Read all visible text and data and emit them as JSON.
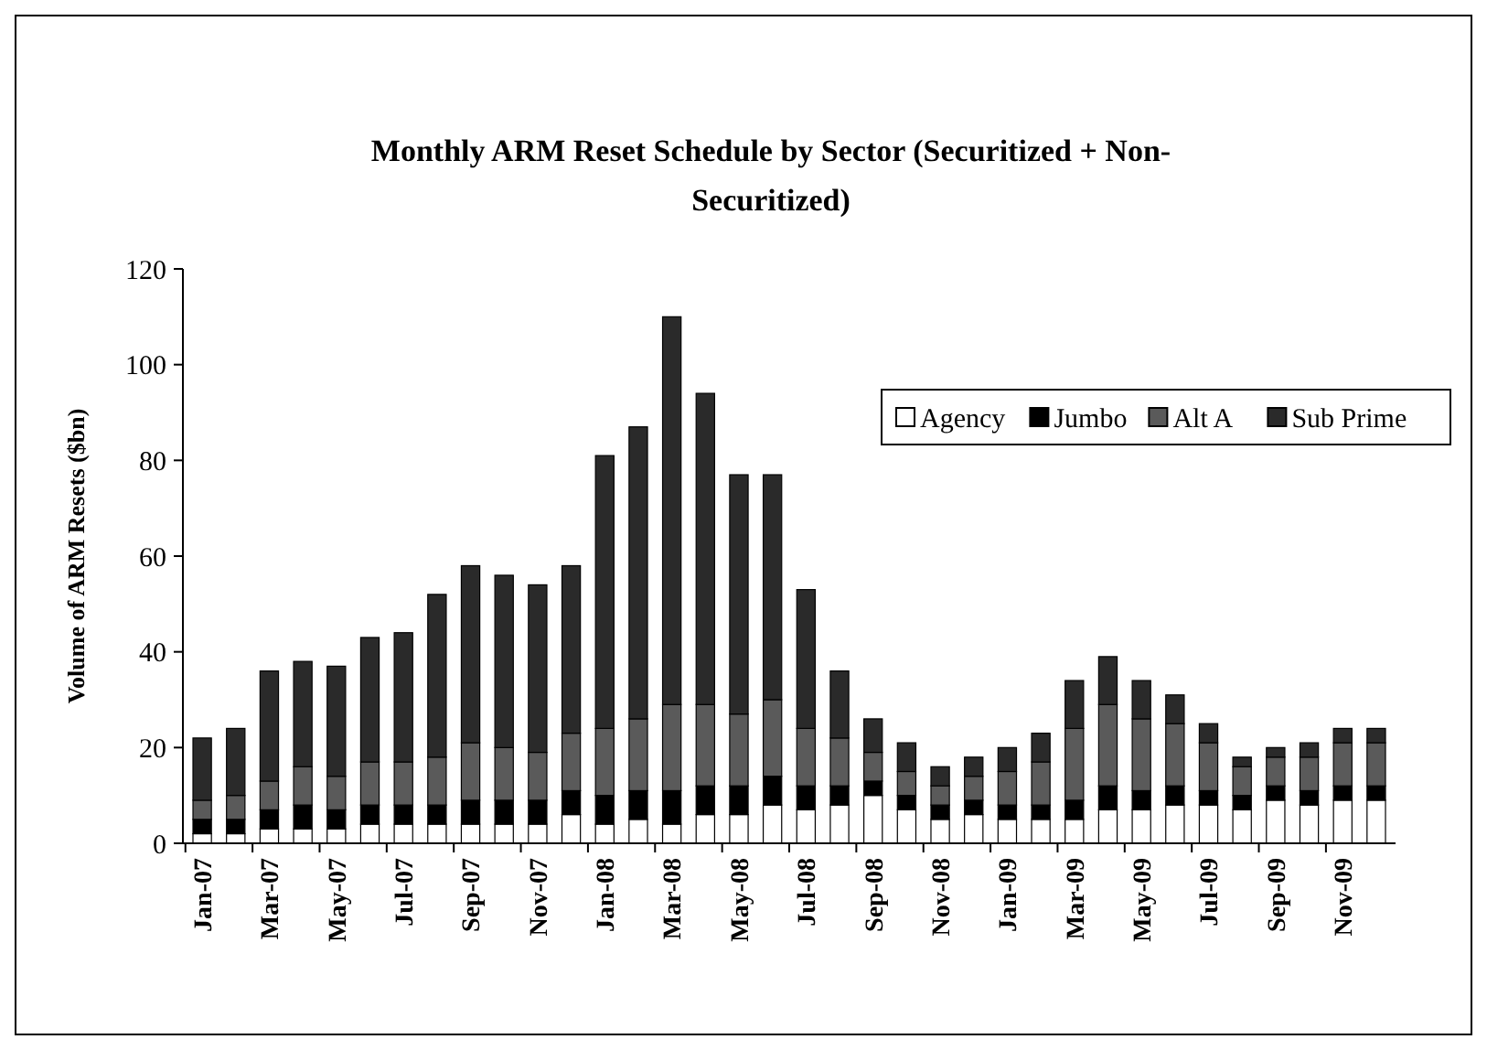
{
  "chart_data": {
    "type": "bar",
    "title": "Monthly ARM Reset Schedule by Sector (Securitized + Non-Securitized)",
    "ylabel": "Volume of ARM Resets ($bn)",
    "categories": [
      "Jan-07",
      null,
      "Mar-07",
      null,
      "May-07",
      null,
      "Jul-07",
      null,
      "Sep-07",
      null,
      "Nov-07",
      null,
      "Jan-08",
      null,
      "Mar-08",
      null,
      "May-08",
      null,
      "Jul-08",
      null,
      "Sep-08",
      null,
      "Nov-08",
      null,
      "Jan-09",
      null,
      "Mar-09",
      null,
      "May-09",
      null,
      "Jul-09",
      null,
      "Sep-09",
      null,
      "Nov-09",
      null
    ],
    "stacked": true,
    "series": [
      {
        "name": "Agency",
        "color": "#ffffff",
        "values": [
          2,
          2,
          3,
          3,
          3,
          4,
          4,
          4,
          4,
          4,
          4,
          6,
          4,
          5,
          4,
          6,
          6,
          8,
          7,
          8,
          10,
          7,
          5,
          6,
          5,
          5,
          5,
          7,
          7,
          8,
          8,
          7,
          9,
          8,
          9,
          9
        ]
      },
      {
        "name": "Jumbo",
        "color": "#000000",
        "values": [
          3,
          3,
          4,
          5,
          4,
          4,
          4,
          4,
          5,
          5,
          5,
          5,
          6,
          6,
          7,
          6,
          6,
          6,
          5,
          4,
          3,
          3,
          3,
          3,
          3,
          3,
          4,
          5,
          4,
          4,
          3,
          3,
          3,
          3,
          3,
          3
        ]
      },
      {
        "name": "Alt A",
        "color": "#5a5a5a",
        "values": [
          4,
          5,
          6,
          8,
          7,
          9,
          9,
          10,
          12,
          11,
          10,
          12,
          14,
          15,
          18,
          17,
          15,
          16,
          12,
          10,
          6,
          5,
          4,
          5,
          7,
          9,
          15,
          17,
          15,
          13,
          10,
          6,
          6,
          7,
          9,
          9
        ]
      },
      {
        "name": "Sub Prime",
        "color": "#2a2a2a",
        "values": [
          13,
          14,
          23,
          22,
          23,
          26,
          27,
          34,
          37,
          36,
          35,
          35,
          57,
          61,
          81,
          65,
          50,
          47,
          29,
          14,
          7,
          6,
          4,
          4,
          5,
          6,
          10,
          10,
          8,
          6,
          4,
          2,
          2,
          3,
          3,
          3
        ]
      }
    ],
    "ylim": [
      0,
      120
    ],
    "yticks": [
      0,
      20,
      40,
      60,
      80,
      100,
      120
    ],
    "grid": false,
    "legend": "top right"
  }
}
